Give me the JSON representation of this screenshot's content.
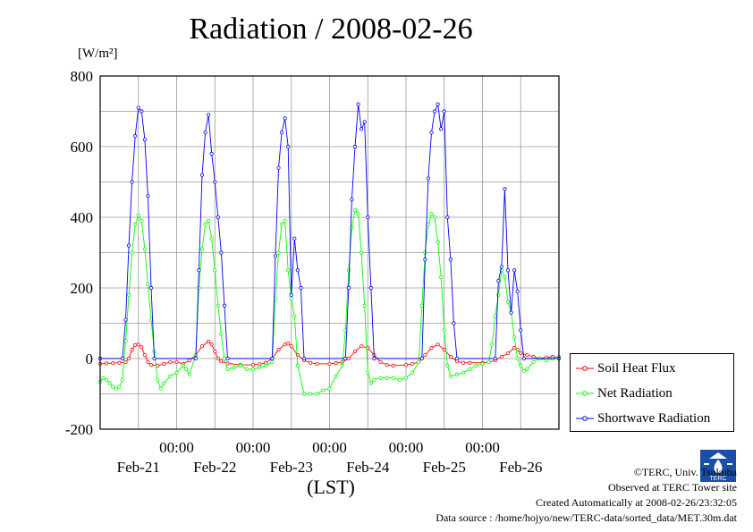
{
  "header": {
    "title": "Radiation / 2008-02-26",
    "unit_label": "[W/m²]",
    "x_axis_label": "(LST)"
  },
  "footer": {
    "copyright": "©TERC, Univ. Tsukuba",
    "site": "Observed at TERC Tower site",
    "created": "Created Automatically at 2008-02-26/23:32:05",
    "source": "Data source : /home/hojyo/new/TERC-data/sorted_data/MET.30m.dat",
    "logo_text": "TERC"
  },
  "chart_data": {
    "type": "line",
    "title": "Radiation / 2008-02-26",
    "ylabel": "[W/m²]",
    "xlabel": "(LST)",
    "ylim": [
      -200,
      800
    ],
    "yticks": [
      -200,
      0,
      200,
      400,
      600,
      800
    ],
    "xlim_hours": [
      0,
      144
    ],
    "time_tick_labels": [
      "00:00",
      "00:00",
      "00:00",
      "00:00",
      "00:00"
    ],
    "date_labels": [
      "Feb-21",
      "Feb-22",
      "Feb-23",
      "Feb-24",
      "Feb-25",
      "Feb-26"
    ],
    "grid": true,
    "legend_position": "lower-right, outside plot",
    "series": [
      {
        "name": "Soil Heat Flux",
        "color": "#ff0000",
        "points": [
          [
            0,
            -15
          ],
          [
            2,
            -14
          ],
          [
            4,
            -13
          ],
          [
            6,
            -12
          ],
          [
            8,
            -10
          ],
          [
            9,
            0
          ],
          [
            10,
            25
          ],
          [
            11,
            38
          ],
          [
            12,
            40
          ],
          [
            13,
            32
          ],
          [
            14,
            10
          ],
          [
            15,
            -10
          ],
          [
            16,
            -18
          ],
          [
            18,
            -20
          ],
          [
            20,
            -15
          ],
          [
            22,
            -10
          ],
          [
            24,
            -10
          ],
          [
            26,
            -15
          ],
          [
            28,
            -5
          ],
          [
            30,
            10
          ],
          [
            32,
            35
          ],
          [
            34,
            48
          ],
          [
            35,
            40
          ],
          [
            36,
            20
          ],
          [
            37,
            0
          ],
          [
            38,
            -8
          ],
          [
            40,
            -14
          ],
          [
            44,
            -18
          ],
          [
            48,
            -18
          ],
          [
            50,
            -16
          ],
          [
            52,
            -12
          ],
          [
            54,
            0
          ],
          [
            56,
            25
          ],
          [
            58,
            40
          ],
          [
            59,
            42
          ],
          [
            60,
            35
          ],
          [
            62,
            10
          ],
          [
            64,
            -5
          ],
          [
            66,
            -12
          ],
          [
            68,
            -15
          ],
          [
            72,
            -15
          ],
          [
            74,
            -13
          ],
          [
            76,
            -10
          ],
          [
            78,
            0
          ],
          [
            80,
            20
          ],
          [
            82,
            35
          ],
          [
            84,
            30
          ],
          [
            86,
            10
          ],
          [
            88,
            -10
          ],
          [
            90,
            -18
          ],
          [
            92,
            -20
          ],
          [
            96,
            -18
          ],
          [
            98,
            -15
          ],
          [
            100,
            -10
          ],
          [
            102,
            10
          ],
          [
            104,
            30
          ],
          [
            106,
            40
          ],
          [
            108,
            25
          ],
          [
            110,
            5
          ],
          [
            112,
            -8
          ],
          [
            114,
            -12
          ],
          [
            116,
            -12
          ],
          [
            120,
            -12
          ],
          [
            122,
            -10
          ],
          [
            124,
            -5
          ],
          [
            126,
            5
          ],
          [
            128,
            15
          ],
          [
            130,
            30
          ],
          [
            131,
            25
          ],
          [
            132,
            15
          ],
          [
            134,
            10
          ],
          [
            136,
            5
          ],
          [
            138,
            0
          ],
          [
            140,
            3
          ],
          [
            142,
            5
          ],
          [
            144,
            3
          ]
        ]
      },
      {
        "name": "Net Radiation",
        "color": "#00ff00",
        "points": [
          [
            0,
            -65
          ],
          [
            1,
            -55
          ],
          [
            2,
            -60
          ],
          [
            3,
            -70
          ],
          [
            4,
            -80
          ],
          [
            5,
            -85
          ],
          [
            6,
            -80
          ],
          [
            7,
            -60
          ],
          [
            8,
            50
          ],
          [
            9,
            180
          ],
          [
            10,
            300
          ],
          [
            11,
            380
          ],
          [
            12,
            405
          ],
          [
            13,
            390
          ],
          [
            14,
            310
          ],
          [
            15,
            210
          ],
          [
            16,
            110
          ],
          [
            17,
            20
          ],
          [
            18,
            -60
          ],
          [
            19,
            -85
          ],
          [
            20,
            -70
          ],
          [
            22,
            -50
          ],
          [
            24,
            -40
          ],
          [
            26,
            -20
          ],
          [
            27,
            -30
          ],
          [
            28,
            -45
          ],
          [
            30,
            10
          ],
          [
            31,
            200
          ],
          [
            32,
            310
          ],
          [
            33,
            380
          ],
          [
            34,
            390
          ],
          [
            35,
            340
          ],
          [
            36,
            250
          ],
          [
            37,
            150
          ],
          [
            38,
            70
          ],
          [
            39,
            0
          ],
          [
            40,
            -30
          ],
          [
            42,
            -25
          ],
          [
            44,
            -20
          ],
          [
            46,
            -30
          ],
          [
            48,
            -30
          ],
          [
            50,
            -25
          ],
          [
            52,
            -20
          ],
          [
            54,
            -10
          ],
          [
            55,
            170
          ],
          [
            56,
            300
          ],
          [
            57,
            380
          ],
          [
            58,
            390
          ],
          [
            59,
            250
          ],
          [
            60,
            170
          ],
          [
            61,
            120
          ],
          [
            62,
            -20
          ],
          [
            64,
            -100
          ],
          [
            66,
            -100
          ],
          [
            68,
            -100
          ],
          [
            70,
            -90
          ],
          [
            72,
            -85
          ],
          [
            74,
            -50
          ],
          [
            76,
            -20
          ],
          [
            77,
            80
          ],
          [
            78,
            250
          ],
          [
            79,
            370
          ],
          [
            80,
            420
          ],
          [
            81,
            410
          ],
          [
            82,
            300
          ],
          [
            83,
            150
          ],
          [
            84,
            -40
          ],
          [
            85,
            -70
          ],
          [
            86,
            -60
          ],
          [
            88,
            -55
          ],
          [
            90,
            -55
          ],
          [
            92,
            -55
          ],
          [
            94,
            -60
          ],
          [
            96,
            -55
          ],
          [
            98,
            -40
          ],
          [
            100,
            -10
          ],
          [
            101,
            150
          ],
          [
            102,
            300
          ],
          [
            103,
            380
          ],
          [
            104,
            410
          ],
          [
            105,
            400
          ],
          [
            106,
            330
          ],
          [
            107,
            230
          ],
          [
            108,
            80
          ],
          [
            109,
            -20
          ],
          [
            110,
            -50
          ],
          [
            112,
            -45
          ],
          [
            114,
            -40
          ],
          [
            116,
            -30
          ],
          [
            118,
            -20
          ],
          [
            120,
            -15
          ],
          [
            122,
            -10
          ],
          [
            123,
            40
          ],
          [
            124,
            120
          ],
          [
            125,
            180
          ],
          [
            126,
            250
          ],
          [
            127,
            230
          ],
          [
            128,
            160
          ],
          [
            129,
            130
          ],
          [
            130,
            60
          ],
          [
            131,
            0
          ],
          [
            132,
            -20
          ],
          [
            133,
            -35
          ],
          [
            134,
            -30
          ],
          [
            136,
            -10
          ],
          [
            138,
            0
          ],
          [
            140,
            -5
          ],
          [
            142,
            0
          ],
          [
            144,
            5
          ]
        ]
      },
      {
        "name": "Shortwave Radiation",
        "color": "#0000ff",
        "points": [
          [
            0,
            0
          ],
          [
            7,
            0
          ],
          [
            8,
            110
          ],
          [
            9,
            320
          ],
          [
            10,
            500
          ],
          [
            11,
            630
          ],
          [
            12,
            710
          ],
          [
            13,
            700
          ],
          [
            14,
            620
          ],
          [
            15,
            460
          ],
          [
            16,
            200
          ],
          [
            17,
            0
          ],
          [
            30,
            0
          ],
          [
            31,
            250
          ],
          [
            32,
            520
          ],
          [
            33,
            640
          ],
          [
            34,
            690
          ],
          [
            35,
            580
          ],
          [
            36,
            500
          ],
          [
            37,
            400
          ],
          [
            38,
            300
          ],
          [
            39,
            150
          ],
          [
            40,
            0
          ],
          [
            54,
            0
          ],
          [
            55,
            290
          ],
          [
            56,
            540
          ],
          [
            57,
            640
          ],
          [
            58,
            680
          ],
          [
            59,
            600
          ],
          [
            60,
            180
          ],
          [
            61,
            340
          ],
          [
            62,
            250
          ],
          [
            63,
            200
          ],
          [
            64,
            0
          ],
          [
            77,
            0
          ],
          [
            78,
            200
          ],
          [
            79,
            450
          ],
          [
            80,
            600
          ],
          [
            81,
            720
          ],
          [
            82,
            650
          ],
          [
            83,
            670
          ],
          [
            84,
            400
          ],
          [
            85,
            200
          ],
          [
            86,
            0
          ],
          [
            101,
            0
          ],
          [
            102,
            280
          ],
          [
            103,
            510
          ],
          [
            104,
            640
          ],
          [
            105,
            700
          ],
          [
            106,
            720
          ],
          [
            107,
            650
          ],
          [
            108,
            700
          ],
          [
            109,
            400
          ],
          [
            110,
            280
          ],
          [
            111,
            100
          ],
          [
            112,
            0
          ],
          [
            124,
            0
          ],
          [
            125,
            220
          ],
          [
            126,
            260
          ],
          [
            127,
            480
          ],
          [
            128,
            250
          ],
          [
            129,
            130
          ],
          [
            130,
            250
          ],
          [
            131,
            190
          ],
          [
            132,
            80
          ],
          [
            133,
            0
          ],
          [
            144,
            0
          ]
        ]
      }
    ]
  }
}
